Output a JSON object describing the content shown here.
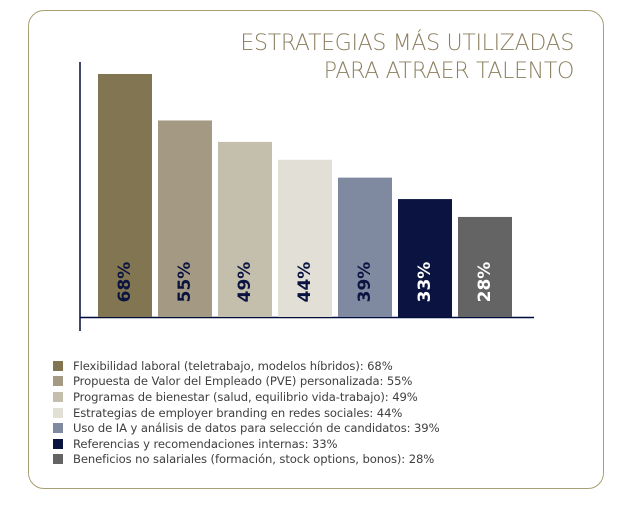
{
  "chart_data": {
    "type": "bar",
    "title_lines": [
      "ESTRATEGIAS MÁS UTILIZADAS",
      "PARA ATRAER TALENTO"
    ],
    "categories": [
      "Flexibilidad laboral (teletrabajo, modelos híbridos): 68%",
      "Propuesta de Valor del Empleado (PVE) personalizada: 55%",
      "Programas de bienestar (salud, equilibrio vida-trabajo): 49%",
      "Estrategias de employer branding en redes sociales: 44%",
      "Uso de IA y análisis de datos para selección de candidatos: 39%",
      "Referencias y recomendaciones internas: 33%",
      "Beneficios no salariales (formación, stock options, bonos): 28%"
    ],
    "values": [
      68,
      55,
      49,
      44,
      39,
      33,
      28
    ],
    "value_labels": [
      "68%",
      "55%",
      "49%",
      "44%",
      "39%",
      "33%",
      "28%"
    ],
    "colors": [
      "#827551",
      "#a49a84",
      "#c4bfad",
      "#e2dfd7",
      "#7f899f",
      "#0b1440",
      "#646464"
    ],
    "label_colors": [
      "#0b1440",
      "#0b1440",
      "#0b1440",
      "#0b1440",
      "#0b1440",
      "#ffffff",
      "#ffffff"
    ],
    "ylim": [
      0,
      68
    ],
    "grid": false,
    "legend_position": "bottom-left"
  }
}
